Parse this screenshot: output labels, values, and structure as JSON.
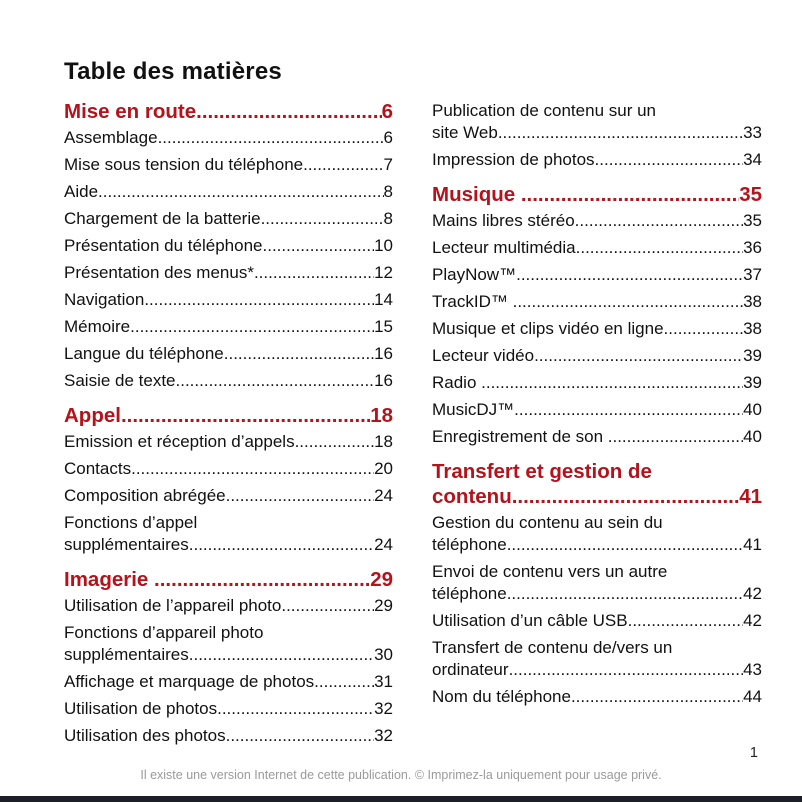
{
  "page": {
    "title": "Table des matières",
    "page_number": "1",
    "footer": "Il existe une version Internet de cette publication. © Imprimez-la uniquement pour usage privé.",
    "accent_color": "#B5121B"
  },
  "toc": {
    "columns": [
      [
        {
          "kind": "heading",
          "lines": [
            "Mise en route"
          ],
          "page": "6"
        },
        {
          "kind": "entry",
          "lines": [
            "Assemblage"
          ],
          "page": "6"
        },
        {
          "kind": "entry",
          "lines": [
            "Mise sous tension du téléphone"
          ],
          "page": "7"
        },
        {
          "kind": "entry",
          "lines": [
            "Aide"
          ],
          "page": "8"
        },
        {
          "kind": "entry",
          "lines": [
            "Chargement de la batterie"
          ],
          "page": "8"
        },
        {
          "kind": "entry",
          "lines": [
            "Présentation du téléphone"
          ],
          "page": "10"
        },
        {
          "kind": "entry",
          "lines": [
            "Présentation des menus*"
          ],
          "page": "12"
        },
        {
          "kind": "entry",
          "lines": [
            "Navigation"
          ],
          "page": "14"
        },
        {
          "kind": "entry",
          "lines": [
            "Mémoire"
          ],
          "page": "15"
        },
        {
          "kind": "entry",
          "lines": [
            "Langue du téléphone"
          ],
          "page": "16"
        },
        {
          "kind": "entry",
          "lines": [
            "Saisie de texte"
          ],
          "page": "16"
        },
        {
          "kind": "heading",
          "lines": [
            "Appel"
          ],
          "page": "18"
        },
        {
          "kind": "entry",
          "lines": [
            "Emission et réception d’appels"
          ],
          "page": "18"
        },
        {
          "kind": "entry",
          "lines": [
            "Contacts"
          ],
          "page": "20"
        },
        {
          "kind": "entry",
          "lines": [
            "Composition abrégée"
          ],
          "page": "24"
        },
        {
          "kind": "entry",
          "lines": [
            "Fonctions d’appel",
            "supplémentaires"
          ],
          "page": "24"
        },
        {
          "kind": "heading",
          "lines": [
            "Imagerie "
          ],
          "page": "29"
        },
        {
          "kind": "entry",
          "lines": [
            "Utilisation de l’appareil photo"
          ],
          "page": "29"
        },
        {
          "kind": "entry",
          "lines": [
            "Fonctions d’appareil photo",
            "supplémentaires"
          ],
          "page": "30"
        },
        {
          "kind": "entry",
          "lines": [
            "Affichage et marquage de photos"
          ],
          "page": "31"
        },
        {
          "kind": "entry",
          "lines": [
            "Utilisation de photos"
          ],
          "page": "32"
        },
        {
          "kind": "entry",
          "lines": [
            "Utilisation des photos"
          ],
          "page": "32"
        }
      ],
      [
        {
          "kind": "entry",
          "lines": [
            "Publication de contenu sur un",
            "site Web"
          ],
          "page": "33"
        },
        {
          "kind": "entry",
          "lines": [
            "Impression de photos"
          ],
          "page": "34"
        },
        {
          "kind": "heading",
          "lines": [
            "Musique "
          ],
          "page": "35"
        },
        {
          "kind": "entry",
          "lines": [
            "Mains libres stéréo"
          ],
          "page": "35"
        },
        {
          "kind": "entry",
          "lines": [
            "Lecteur multimédia"
          ],
          "page": "36"
        },
        {
          "kind": "entry",
          "lines": [
            "PlayNow™"
          ],
          "page": "37"
        },
        {
          "kind": "entry",
          "lines": [
            "TrackID™ "
          ],
          "page": "38"
        },
        {
          "kind": "entry",
          "lines": [
            "Musique et clips vidéo en ligne"
          ],
          "page": "38"
        },
        {
          "kind": "entry",
          "lines": [
            "Lecteur vidéo"
          ],
          "page": "39"
        },
        {
          "kind": "entry",
          "lines": [
            "Radio "
          ],
          "page": "39"
        },
        {
          "kind": "entry",
          "lines": [
            "MusicDJ™"
          ],
          "page": "40"
        },
        {
          "kind": "entry",
          "lines": [
            "Enregistrement de son "
          ],
          "page": "40"
        },
        {
          "kind": "heading",
          "lines": [
            "Transfert et gestion de",
            "contenu"
          ],
          "page": "41"
        },
        {
          "kind": "entry",
          "lines": [
            "Gestion du contenu au sein du",
            "téléphone"
          ],
          "page": "41"
        },
        {
          "kind": "entry",
          "lines": [
            "Envoi de contenu vers un autre",
            "téléphone"
          ],
          "page": "42"
        },
        {
          "kind": "entry",
          "lines": [
            "Utilisation d’un câble USB"
          ],
          "page": "42"
        },
        {
          "kind": "entry",
          "lines": [
            "Transfert de contenu de/vers un",
            "ordinateur"
          ],
          "page": "43"
        },
        {
          "kind": "entry",
          "lines": [
            "Nom du téléphone"
          ],
          "page": "44"
        }
      ]
    ]
  }
}
